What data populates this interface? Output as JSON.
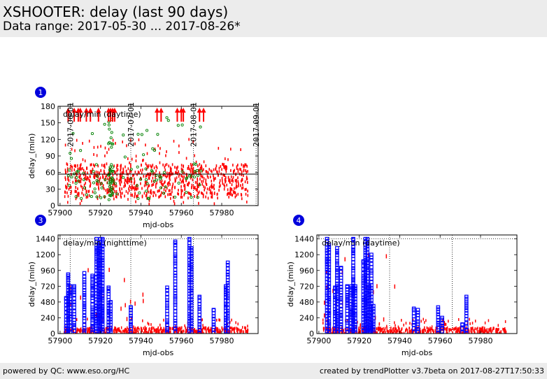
{
  "header": {
    "title": "XSHOOTER: delay (last 90 days)",
    "subtitle": "Data range: 2017-05-30 ... 2017-08-26*"
  },
  "footer": {
    "left": "powered by QC: www.eso.org/HC",
    "right": "created by trendPlotter v3.7beta on 2017-08-27T17:50:33"
  },
  "colors": {
    "daytime": "#ff0000",
    "nighttime": "#0000ff",
    "flats": "#008000",
    "badge": "#0000dd",
    "reference": "#000000"
  },
  "chart_data": [
    {
      "type": "scatter",
      "id": "1",
      "title": "delay/min (daytime)",
      "xlabel": "mjd-obs",
      "ylabel": "delay_(min)",
      "xlim": [
        57899,
        57998
      ],
      "ylim": [
        0,
        180
      ],
      "xticks": [
        57900,
        57920,
        57940,
        57960,
        57980
      ],
      "yticks": [
        0,
        30,
        60,
        90,
        120,
        150,
        180
      ],
      "date_ticks": [
        {
          "label": "2017-06-01",
          "mjd": 57905
        },
        {
          "label": "2017-07-01",
          "mjd": 57935
        },
        {
          "label": "2017-08-01",
          "mjd": 57966
        },
        {
          "label": "2017-09-01",
          "mjd": 57997
        }
      ],
      "reference_line": 57,
      "outlier_arrows_mjd": [
        57904,
        57907,
        57909,
        57910,
        57913,
        57915,
        57919,
        57924,
        57925,
        57926,
        57927,
        57948,
        57950,
        57958,
        57960,
        57961,
        57969,
        57971
      ],
      "series": [
        {
          "name": "daytime",
          "color": "red",
          "x_range": [
            57902,
            57993
          ],
          "y_range": [
            2,
            120
          ],
          "y_typical": [
            15,
            75
          ],
          "density": "high"
        },
        {
          "name": "flats",
          "color": "green",
          "x_range": [
            57904,
            57972
          ],
          "y_range": [
            10,
            175
          ],
          "cluster_mjd": 57925,
          "density": "medium"
        }
      ]
    },
    {
      "type": "scatter",
      "id": "3",
      "title": "delay/min (nighttime)",
      "xlabel": "mjd-obs",
      "ylabel": "delay_(min)",
      "xlim": [
        57899,
        57998
      ],
      "ylim": [
        0,
        1500
      ],
      "xticks": [
        57900,
        57920,
        57940,
        57960,
        57980
      ],
      "yticks": [
        0,
        240,
        480,
        720,
        960,
        1200,
        1440
      ],
      "date_marks_mjd": [
        57905,
        57935,
        57966
      ],
      "columns": [
        {
          "x": 57903,
          "ymax": 540
        },
        {
          "x": 57904,
          "ymax": 900
        },
        {
          "x": 57905,
          "ymax": 720
        },
        {
          "x": 57907,
          "ymax": 720
        },
        {
          "x": 57912,
          "ymax": 920
        },
        {
          "x": 57916,
          "ymax": 880
        },
        {
          "x": 57918,
          "ymax": 1440
        },
        {
          "x": 57919,
          "ymax": 1340
        },
        {
          "x": 57920,
          "ymax": 1440
        },
        {
          "x": 57921,
          "ymax": 1440
        },
        {
          "x": 57924,
          "ymax": 700
        },
        {
          "x": 57925,
          "ymax": 480
        },
        {
          "x": 57935,
          "ymax": 400
        },
        {
          "x": 57953,
          "ymax": 700
        },
        {
          "x": 57957,
          "ymax": 1400
        },
        {
          "x": 57964,
          "ymax": 1440
        },
        {
          "x": 57965,
          "ymax": 1300
        },
        {
          "x": 57969,
          "ymax": 560
        },
        {
          "x": 57976,
          "ymax": 360
        },
        {
          "x": 57982,
          "ymax": 720
        },
        {
          "x": 57983,
          "ymax": 1080
        }
      ],
      "red_range": [
        57902,
        57993
      ]
    },
    {
      "type": "scatter",
      "id": "4",
      "title": "delay/min (daytime)",
      "xlabel": "mjd-obs",
      "ylabel": "delay_(min)",
      "xlim": [
        57899,
        57998
      ],
      "ylim": [
        0,
        1500
      ],
      "xticks": [
        57900,
        57920,
        57940,
        57960,
        57980
      ],
      "yticks": [
        0,
        240,
        480,
        720,
        960,
        1200,
        1440
      ],
      "date_marks_mjd": [
        57905,
        57935,
        57966
      ],
      "columns": [
        {
          "x": 57904,
          "ymax": 1440
        },
        {
          "x": 57905,
          "ymax": 1350
        },
        {
          "x": 57908,
          "ymax": 700
        },
        {
          "x": 57909,
          "ymax": 1300
        },
        {
          "x": 57911,
          "ymax": 1000
        },
        {
          "x": 57914,
          "ymax": 720
        },
        {
          "x": 57916,
          "ymax": 720
        },
        {
          "x": 57917,
          "ymax": 1440
        },
        {
          "x": 57918,
          "ymax": 720
        },
        {
          "x": 57922,
          "ymax": 1100
        },
        {
          "x": 57923,
          "ymax": 1440
        },
        {
          "x": 57924,
          "ymax": 1440
        },
        {
          "x": 57925,
          "ymax": 720
        },
        {
          "x": 57926,
          "ymax": 1200
        },
        {
          "x": 57927,
          "ymax": 420
        },
        {
          "x": 57947,
          "ymax": 380
        },
        {
          "x": 57949,
          "ymax": 360
        },
        {
          "x": 57959,
          "ymax": 400
        },
        {
          "x": 57961,
          "ymax": 240
        },
        {
          "x": 57971,
          "ymax": 140
        },
        {
          "x": 57973,
          "ymax": 560
        }
      ],
      "red_range": [
        57902,
        57993
      ]
    }
  ]
}
